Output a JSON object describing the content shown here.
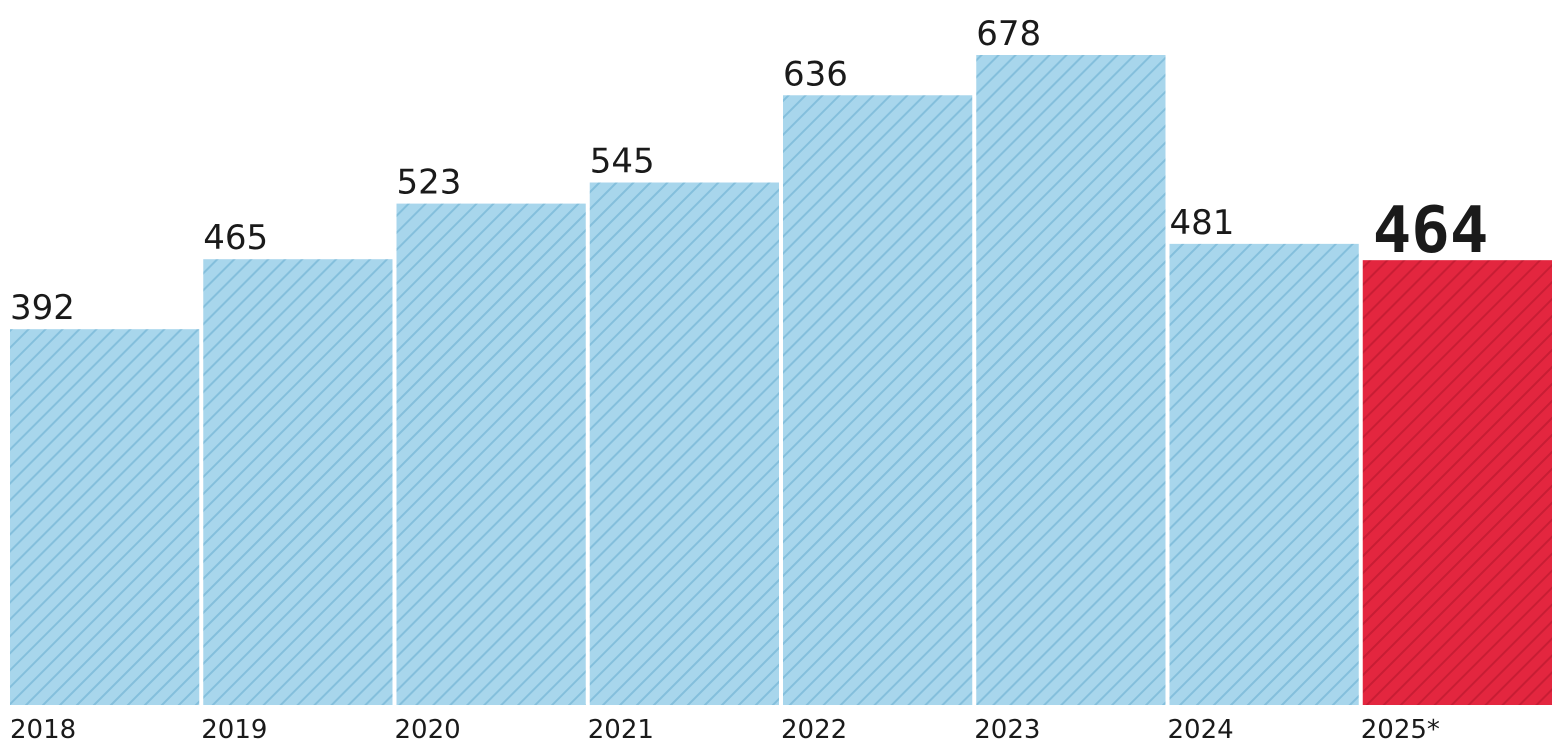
{
  "chart_data": {
    "type": "bar",
    "categories": [
      "2018",
      "2019",
      "2020",
      "2021",
      "2022",
      "2023",
      "2024",
      "2025*"
    ],
    "values": [
      392,
      465,
      523,
      545,
      636,
      678,
      481,
      464
    ],
    "value_labels": [
      "392",
      "465",
      "523",
      "545",
      "636",
      "678",
      "481",
      "464"
    ],
    "highlight_index": 7,
    "ylim": [
      0,
      678
    ],
    "grid": false,
    "legend": "none",
    "colors": {
      "bar": "#a8d6ec",
      "bar_hatch": "#84bfdc",
      "highlight": "#e3263f",
      "highlight_hatch": "#c81d34",
      "text": "#1a1a1a"
    }
  }
}
